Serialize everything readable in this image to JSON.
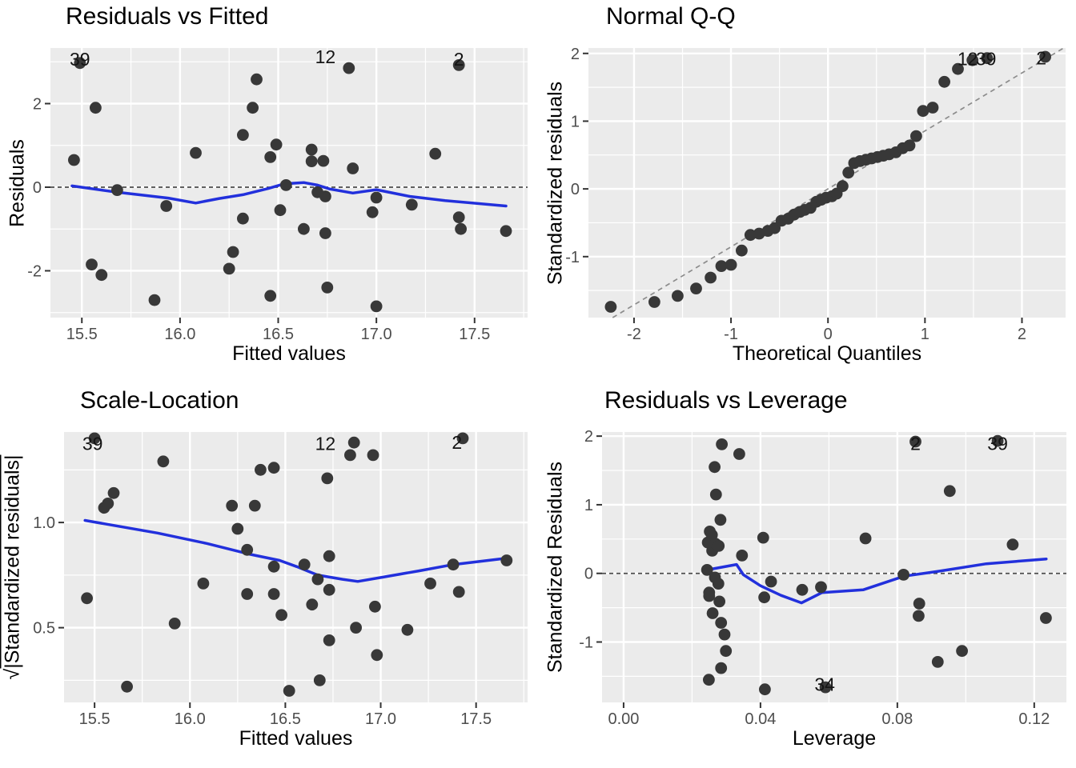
{
  "style": {
    "background": "#ffffff",
    "panel_bg": "#EBEBEB",
    "grid_major": "#FFFFFF",
    "grid_minor": "#FFFFFF",
    "point_color": "#383838",
    "smooth_color": "#2230DC",
    "refline_color": "#4A4A4A",
    "qq_line_color": "#8C8C8C",
    "tick_label_color": "#4D4D4D",
    "tick_mark_color": "#333333",
    "annotation_color": "#141414",
    "title_color": "#000000"
  },
  "chart_data": [
    {
      "type": "scatter",
      "title": "Residuals vs Fitted",
      "xlabel": "Fitted values",
      "ylabel": "Residuals",
      "xlim": [
        15.34,
        17.77
      ],
      "ylim": [
        -3.12,
        3.33
      ],
      "xticks": [
        {
          "v": 15.5,
          "t": "15.5"
        },
        {
          "v": 16.0,
          "t": "16.0"
        },
        {
          "v": 16.5,
          "t": "16.5"
        },
        {
          "v": 17.0,
          "t": "17.0"
        },
        {
          "v": 17.5,
          "t": "17.5"
        }
      ],
      "yticks": [
        {
          "v": -2,
          "t": "-2"
        },
        {
          "v": 0,
          "t": "0"
        },
        {
          "v": 2,
          "t": "2"
        }
      ],
      "xminor": [
        15.75,
        16.25,
        16.75,
        17.25,
        17.75
      ],
      "yminor": [
        -3,
        -1,
        1,
        3
      ],
      "hline": 0,
      "abline": null,
      "grid": "on",
      "legend": "none",
      "smooth": [
        [
          15.45,
          0.03
        ],
        [
          15.68,
          -0.12
        ],
        [
          15.94,
          -0.26
        ],
        [
          16.08,
          -0.38
        ],
        [
          16.2,
          -0.27
        ],
        [
          16.32,
          -0.18
        ],
        [
          16.45,
          -0.03
        ],
        [
          16.53,
          0.08
        ],
        [
          16.63,
          0.11
        ],
        [
          16.7,
          0.05
        ],
        [
          16.76,
          -0.04
        ],
        [
          16.88,
          -0.14
        ],
        [
          17.0,
          -0.06
        ],
        [
          17.17,
          -0.22
        ],
        [
          17.35,
          -0.32
        ],
        [
          17.66,
          -0.45
        ]
      ],
      "points": [
        [
          15.46,
          0.65
        ],
        [
          15.49,
          2.97
        ],
        [
          15.55,
          -1.85
        ],
        [
          15.57,
          1.9
        ],
        [
          15.6,
          -2.1
        ],
        [
          15.68,
          -0.07
        ],
        [
          15.87,
          -2.7
        ],
        [
          15.93,
          -0.45
        ],
        [
          16.08,
          0.82
        ],
        [
          16.25,
          -1.95
        ],
        [
          16.27,
          -1.55
        ],
        [
          16.32,
          1.25
        ],
        [
          16.32,
          -0.75
        ],
        [
          16.37,
          1.9
        ],
        [
          16.39,
          2.58
        ],
        [
          16.46,
          0.72
        ],
        [
          16.46,
          -2.6
        ],
        [
          16.49,
          1.02
        ],
        [
          16.51,
          -0.55
        ],
        [
          16.54,
          0.05
        ],
        [
          16.63,
          -1.0
        ],
        [
          16.67,
          0.9
        ],
        [
          16.67,
          0.62
        ],
        [
          16.7,
          -0.12
        ],
        [
          16.73,
          0.63
        ],
        [
          16.74,
          -0.22
        ],
        [
          16.74,
          -1.1
        ],
        [
          16.75,
          -2.4
        ],
        [
          16.86,
          2.85
        ],
        [
          16.88,
          0.45
        ],
        [
          16.98,
          -0.6
        ],
        [
          17.0,
          -0.25
        ],
        [
          17.0,
          -2.85
        ],
        [
          17.18,
          -0.42
        ],
        [
          17.3,
          0.8
        ],
        [
          17.42,
          2.92
        ],
        [
          17.42,
          -0.72
        ],
        [
          17.43,
          -1.0
        ],
        [
          17.66,
          -1.05
        ]
      ],
      "annotations": [
        {
          "t": "39",
          "x": 15.49,
          "y": 3.06
        },
        {
          "t": "12",
          "x": 16.74,
          "y": 3.12
        },
        {
          "t": "2",
          "x": 17.42,
          "y": 3.06
        }
      ]
    },
    {
      "type": "scatter",
      "title": "Normal Q-Q",
      "xlabel": "Theoretical Quantiles",
      "ylabel": "Standardized residuals",
      "xlim": [
        -2.47,
        2.45
      ],
      "ylim": [
        -1.9,
        2.08
      ],
      "xticks": [
        {
          "v": -2,
          "t": "-2"
        },
        {
          "v": -1,
          "t": "-1"
        },
        {
          "v": 0,
          "t": "0"
        },
        {
          "v": 1,
          "t": "1"
        },
        {
          "v": 2,
          "t": "2"
        }
      ],
      "yticks": [
        {
          "v": -1,
          "t": "-1"
        },
        {
          "v": 0,
          "t": "0"
        },
        {
          "v": 1,
          "t": "1"
        },
        {
          "v": 2,
          "t": "2"
        }
      ],
      "xminor": [
        -1.5,
        -0.5,
        0.5,
        1.5
      ],
      "yminor": [
        -1.5,
        -0.5,
        0.5,
        1.5
      ],
      "hline": null,
      "abline": [
        [
          -2.22,
          -1.9
        ],
        [
          2.43,
          2.08
        ]
      ],
      "grid": "on",
      "legend": "none",
      "smooth": null,
      "points": [
        [
          -2.24,
          -1.74
        ],
        [
          -1.79,
          -1.67
        ],
        [
          -1.55,
          -1.58
        ],
        [
          -1.36,
          -1.47
        ],
        [
          -1.21,
          -1.31
        ],
        [
          -1.1,
          -1.14
        ],
        [
          -1.0,
          -1.12
        ],
        [
          -0.89,
          -0.91
        ],
        [
          -0.8,
          -0.68
        ],
        [
          -0.71,
          -0.66
        ],
        [
          -0.62,
          -0.62
        ],
        [
          -0.55,
          -0.58
        ],
        [
          -0.48,
          -0.47
        ],
        [
          -0.41,
          -0.44
        ],
        [
          -0.35,
          -0.38
        ],
        [
          -0.29,
          -0.34
        ],
        [
          -0.24,
          -0.31
        ],
        [
          -0.18,
          -0.28
        ],
        [
          -0.12,
          -0.19
        ],
        [
          -0.07,
          -0.16
        ],
        [
          -0.02,
          -0.13
        ],
        [
          0.04,
          -0.11
        ],
        [
          0.09,
          -0.07
        ],
        [
          0.15,
          0.04
        ],
        [
          0.21,
          0.24
        ],
        [
          0.27,
          0.38
        ],
        [
          0.33,
          0.41
        ],
        [
          0.39,
          0.43
        ],
        [
          0.45,
          0.45
        ],
        [
          0.51,
          0.47
        ],
        [
          0.57,
          0.49
        ],
        [
          0.63,
          0.51
        ],
        [
          0.7,
          0.54
        ],
        [
          0.77,
          0.6
        ],
        [
          0.84,
          0.64
        ],
        [
          0.91,
          0.78
        ],
        [
          0.98,
          1.15
        ],
        [
          1.08,
          1.2
        ],
        [
          1.2,
          1.58
        ],
        [
          1.34,
          1.77
        ],
        [
          1.49,
          1.9
        ],
        [
          1.64,
          1.93
        ],
        [
          2.24,
          1.95
        ]
      ],
      "annotations": [
        {
          "t": "12",
          "x": 1.44,
          "y": 1.92
        },
        {
          "t": "39",
          "x": 1.63,
          "y": 1.92
        },
        {
          "t": "2",
          "x": 2.2,
          "y": 1.93
        }
      ]
    },
    {
      "type": "scatter",
      "title": "Scale-Location",
      "xlabel": "Fitted values",
      "ylabel": "√|Standardized residuals|",
      "xlim": [
        15.34,
        17.77
      ],
      "ylim": [
        0.145,
        1.43
      ],
      "xticks": [
        {
          "v": 15.5,
          "t": "15.5"
        },
        {
          "v": 16.0,
          "t": "16.0"
        },
        {
          "v": 16.5,
          "t": "16.5"
        },
        {
          "v": 17.0,
          "t": "17.0"
        },
        {
          "v": 17.5,
          "t": "17.5"
        }
      ],
      "yticks": [
        {
          "v": 0.5,
          "t": "0.5"
        },
        {
          "v": 1.0,
          "t": "1.0"
        }
      ],
      "xminor": [
        15.75,
        16.25,
        16.75,
        17.25,
        17.75
      ],
      "yminor": [
        0.25,
        0.75,
        1.25
      ],
      "hline": null,
      "abline": null,
      "grid": "on",
      "legend": "none",
      "smooth": [
        [
          15.45,
          1.01
        ],
        [
          15.83,
          0.95
        ],
        [
          16.09,
          0.9
        ],
        [
          16.31,
          0.85
        ],
        [
          16.47,
          0.82
        ],
        [
          16.56,
          0.79
        ],
        [
          16.67,
          0.75
        ],
        [
          16.8,
          0.73
        ],
        [
          16.88,
          0.72
        ],
        [
          17.01,
          0.74
        ],
        [
          17.2,
          0.77
        ],
        [
          17.38,
          0.8
        ],
        [
          17.66,
          0.83
        ]
      ],
      "points": [
        [
          15.46,
          0.64
        ],
        [
          15.5,
          1.4
        ],
        [
          15.55,
          1.07
        ],
        [
          15.57,
          1.09
        ],
        [
          15.6,
          1.14
        ],
        [
          15.67,
          0.22
        ],
        [
          15.86,
          1.29
        ],
        [
          15.92,
          0.52
        ],
        [
          16.07,
          0.71
        ],
        [
          16.22,
          1.08
        ],
        [
          16.25,
          0.97
        ],
        [
          16.3,
          0.87
        ],
        [
          16.3,
          0.66
        ],
        [
          16.34,
          1.08
        ],
        [
          16.37,
          1.25
        ],
        [
          16.44,
          1.26
        ],
        [
          16.44,
          0.79
        ],
        [
          16.44,
          0.66
        ],
        [
          16.48,
          0.56
        ],
        [
          16.52,
          0.2
        ],
        [
          16.6,
          0.8
        ],
        [
          16.64,
          0.61
        ],
        [
          16.67,
          0.73
        ],
        [
          16.68,
          0.25
        ],
        [
          16.72,
          1.21
        ],
        [
          16.73,
          0.84
        ],
        [
          16.73,
          0.68
        ],
        [
          16.73,
          0.44
        ],
        [
          16.84,
          1.32
        ],
        [
          16.86,
          1.38
        ],
        [
          16.87,
          0.5
        ],
        [
          16.96,
          1.32
        ],
        [
          16.97,
          0.6
        ],
        [
          16.98,
          0.37
        ],
        [
          17.14,
          0.49
        ],
        [
          17.26,
          0.71
        ],
        [
          17.38,
          0.8
        ],
        [
          17.41,
          0.67
        ],
        [
          17.43,
          1.4
        ],
        [
          17.66,
          0.82
        ]
      ],
      "annotations": [
        {
          "t": "39",
          "x": 15.49,
          "y": 1.375
        },
        {
          "t": "12",
          "x": 16.71,
          "y": 1.375
        },
        {
          "t": "2",
          "x": 17.4,
          "y": 1.38
        }
      ]
    },
    {
      "type": "scatter",
      "title": "Residuals vs Leverage",
      "xlabel": "Leverage",
      "ylabel": "Standardized Residuals",
      "xlim": [
        -0.0063,
        0.1294
      ],
      "ylim": [
        -1.88,
        2.06
      ],
      "xticks": [
        {
          "v": 0.0,
          "t": "0.00"
        },
        {
          "v": 0.04,
          "t": "0.04"
        },
        {
          "v": 0.08,
          "t": "0.08"
        },
        {
          "v": 0.12,
          "t": "0.12"
        }
      ],
      "yticks": [
        {
          "v": -1,
          "t": "-1"
        },
        {
          "v": 0,
          "t": "0"
        },
        {
          "v": 1,
          "t": "1"
        },
        {
          "v": 2,
          "t": "2"
        }
      ],
      "xminor": [
        0.02,
        0.06,
        0.1
      ],
      "yminor": [
        -1.5,
        -0.5,
        0.5,
        1.5
      ],
      "hline": 0,
      "abline": null,
      "grid": "on",
      "legend": "none",
      "smooth": [
        [
          0.0244,
          0.05
        ],
        [
          0.033,
          0.13
        ],
        [
          0.035,
          -0.02
        ],
        [
          0.04,
          -0.18
        ],
        [
          0.046,
          -0.32
        ],
        [
          0.052,
          -0.43
        ],
        [
          0.058,
          -0.28
        ],
        [
          0.07,
          -0.24
        ],
        [
          0.082,
          -0.04
        ],
        [
          0.092,
          0.03
        ],
        [
          0.106,
          0.14
        ],
        [
          0.1235,
          0.21
        ]
      ],
      "points": [
        [
          0.0244,
          0.05
        ],
        [
          0.0246,
          0.45
        ],
        [
          0.0249,
          -1.55
        ],
        [
          0.025,
          -0.28
        ],
        [
          0.025,
          -0.33
        ],
        [
          0.0252,
          0.61
        ],
        [
          0.0258,
          0.56
        ],
        [
          0.0259,
          0.33
        ],
        [
          0.026,
          -0.58
        ],
        [
          0.0266,
          1.55
        ],
        [
          0.0267,
          -0.06
        ],
        [
          0.0269,
          0.43
        ],
        [
          0.027,
          1.15
        ],
        [
          0.0277,
          -0.15
        ],
        [
          0.0278,
          0.4
        ],
        [
          0.028,
          -0.41
        ],
        [
          0.0283,
          0.78
        ],
        [
          0.0285,
          -0.72
        ],
        [
          0.0285,
          -1.38
        ],
        [
          0.0287,
          1.88
        ],
        [
          0.0295,
          -0.89
        ],
        [
          0.0299,
          -1.13
        ],
        [
          0.0338,
          1.74
        ],
        [
          0.0346,
          0.26
        ],
        [
          0.0408,
          0.52
        ],
        [
          0.0411,
          -0.35
        ],
        [
          0.0413,
          -1.69
        ],
        [
          0.0431,
          -0.12
        ],
        [
          0.0522,
          -0.24
        ],
        [
          0.0577,
          -0.2
        ],
        [
          0.059,
          -1.66
        ],
        [
          0.0707,
          0.51
        ],
        [
          0.0818,
          -0.02
        ],
        [
          0.0853,
          1.92
        ],
        [
          0.0862,
          -0.62
        ],
        [
          0.0864,
          -0.44
        ],
        [
          0.0918,
          -1.29
        ],
        [
          0.0953,
          1.2
        ],
        [
          0.0989,
          -1.13
        ],
        [
          0.1093,
          1.93
        ],
        [
          0.1137,
          0.42
        ],
        [
          0.1234,
          -0.65
        ]
      ],
      "annotations": [
        {
          "t": "2",
          "x": 0.0853,
          "y": 1.89
        },
        {
          "t": "39",
          "x": 0.1093,
          "y": 1.89
        },
        {
          "t": "34",
          "x": 0.0588,
          "y": -1.62
        }
      ]
    }
  ]
}
